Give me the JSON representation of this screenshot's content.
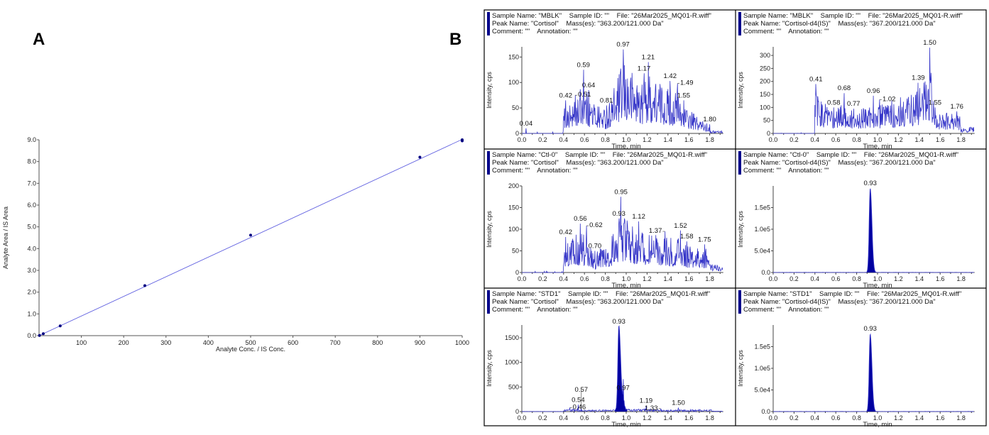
{
  "panel_labels": {
    "a": "A",
    "b": "B"
  },
  "chart_data": [
    {
      "type": "scatter",
      "panel": "A",
      "xlabel": "Analyte Conc. / IS Conc.",
      "ylabel": "Analyte Area / IS Area",
      "xlim": [
        0,
        1000
      ],
      "ylim": [
        0,
        9.0
      ],
      "xticks": [
        "100",
        "200",
        "300",
        "400",
        "500",
        "600",
        "700",
        "800",
        "900",
        "1000"
      ],
      "yticks": [
        "0.0",
        "1.0",
        "2.0",
        "3.0",
        "4.0",
        "5.0",
        "6.0",
        "7.0",
        "8.0",
        "9.0"
      ],
      "points": [
        {
          "x": 1,
          "y": 0.01
        },
        {
          "x": 10,
          "y": 0.09
        },
        {
          "x": 50,
          "y": 0.45
        },
        {
          "x": 250,
          "y": 2.3
        },
        {
          "x": 500,
          "y": 4.62
        },
        {
          "x": 900,
          "y": 8.2
        },
        {
          "x": 1000,
          "y": 9.0
        },
        {
          "x": 1000,
          "y": 8.95
        }
      ],
      "fit_line": {
        "x": [
          0,
          1000
        ],
        "y": [
          0.0,
          9.02
        ]
      },
      "point_color": "#000080",
      "line_color": "#6060e0",
      "grid": false
    },
    {
      "type": "line",
      "panel": "B",
      "header": [
        "Sample Name: \"MBLK\"    Sample ID: \"\"    File: \"26Mar2025_MQ01-R.wiff\"",
        "Peak Name: \"Cortisol\"    Mass(es): \"363.200/121.000 Da\"",
        "Comment: \"\"    Annotation: \"\""
      ],
      "xlabel": "Time, min",
      "ylabel": "Intensity, cps",
      "xlim": [
        0,
        1.93
      ],
      "ylim": [
        0,
        170
      ],
      "xticks": [
        "0.0",
        "0.2",
        "0.4",
        "0.6",
        "0.8",
        "1.0",
        "1.2",
        "1.4",
        "1.6",
        "1.8"
      ],
      "yticks": [
        {
          "v": 0,
          "label": "0"
        },
        {
          "v": 50,
          "label": "50"
        },
        {
          "v": 100,
          "label": "100"
        },
        {
          "v": 150,
          "label": "150"
        }
      ],
      "signal_start": 0.4,
      "peaks": [
        {
          "t": 0.04,
          "y": 10,
          "label": "0.04"
        },
        {
          "t": 0.42,
          "y": 65,
          "label": "0.42"
        },
        {
          "t": 0.51,
          "y": 75,
          "label": "0.51"
        },
        {
          "t": 0.59,
          "y": 125,
          "label": "0.59"
        },
        {
          "t": 0.64,
          "y": 85,
          "label": "0.64"
        },
        {
          "t": 0.81,
          "y": 55,
          "label": "0.81"
        },
        {
          "t": 0.97,
          "y": 165,
          "label": "0.97"
        },
        {
          "t": 1.17,
          "y": 118,
          "label": "1.17"
        },
        {
          "t": 1.21,
          "y": 140,
          "label": "1.21"
        },
        {
          "t": 1.42,
          "y": 103,
          "label": "1.42"
        },
        {
          "t": 1.49,
          "y": 98,
          "label": "1.49"
        },
        {
          "t": 1.55,
          "y": 65,
          "label": "1.55"
        },
        {
          "t": 1.8,
          "y": 18,
          "label": "1.80"
        }
      ]
    },
    {
      "type": "line",
      "panel": "B",
      "header": [
        "Sample Name: \"MBLK\"    Sample ID: \"\"    File: \"26Mar2025_MQ01-R.wiff\"",
        "Peak Name: \"Cortisol-d4(IS)\"    Mass(es): \"367.200/121.000 Da\"",
        "Comment: \"\"    Annotation: \"\""
      ],
      "xlabel": "Time, min",
      "ylabel": "Intensity, cps",
      "xlim": [
        0,
        1.93
      ],
      "ylim": [
        0,
        333
      ],
      "xticks": [
        "0.0",
        "0.2",
        "0.4",
        "0.6",
        "0.8",
        "1.0",
        "1.2",
        "1.4",
        "1.6",
        "1.8"
      ],
      "yticks": [
        {
          "v": 0,
          "label": "0"
        },
        {
          "v": 50,
          "label": "50"
        },
        {
          "v": 100,
          "label": "100"
        },
        {
          "v": 150,
          "label": "150"
        },
        {
          "v": 200,
          "label": "200"
        },
        {
          "v": 250,
          "label": "250"
        },
        {
          "v": 300,
          "label": "300"
        }
      ],
      "signal_start": 0.4,
      "peaks": [
        {
          "t": 0.41,
          "y": 190,
          "label": "0.41"
        },
        {
          "t": 0.58,
          "y": 100,
          "label": "0.58"
        },
        {
          "t": 0.68,
          "y": 155,
          "label": "0.68"
        },
        {
          "t": 0.77,
          "y": 95,
          "label": "0.77"
        },
        {
          "t": 0.96,
          "y": 145,
          "label": "0.96"
        },
        {
          "t": 1.02,
          "y": 130,
          "label": "1.02"
        },
        {
          "t": 1.39,
          "y": 195,
          "label": "1.39"
        },
        {
          "t": 1.5,
          "y": 330,
          "label": "1.50"
        },
        {
          "t": 1.55,
          "y": 100,
          "label": "1.55"
        },
        {
          "t": 1.76,
          "y": 85,
          "label": "1.76"
        }
      ]
    },
    {
      "type": "line",
      "panel": "B",
      "header": [
        "Sample Name: \"Ctl-0\"    Sample ID: \"\"    File: \"26Mar2025_MQ01-R.wiff\"",
        "Peak Name: \"Cortisol\"    Mass(es): \"363.200/121.000 Da\"",
        "Comment: \"\"    Annotation: \"\""
      ],
      "xlabel": "Time, min",
      "ylabel": "Intensity, cps",
      "xlim": [
        0,
        1.93
      ],
      "ylim": [
        0,
        200
      ],
      "xticks": [
        "0.0",
        "0.2",
        "0.4",
        "0.6",
        "0.8",
        "1.0",
        "1.2",
        "1.4",
        "1.6",
        "1.8"
      ],
      "yticks": [
        {
          "v": 0,
          "label": "0"
        },
        {
          "v": 50,
          "label": "50"
        },
        {
          "v": 100,
          "label": "100"
        },
        {
          "v": 150,
          "label": "150"
        },
        {
          "v": 200,
          "label": "200"
        }
      ],
      "signal_start": 0.4,
      "peaks": [
        {
          "t": 0.42,
          "y": 82,
          "label": "0.42"
        },
        {
          "t": 0.56,
          "y": 113,
          "label": "0.56"
        },
        {
          "t": 0.62,
          "y": 108,
          "label": "0.62"
        },
        {
          "t": 0.7,
          "y": 50,
          "label": "0.70"
        },
        {
          "t": 0.93,
          "y": 125,
          "label": "0.93"
        },
        {
          "t": 0.95,
          "y": 175,
          "label": "0.95"
        },
        {
          "t": 1.12,
          "y": 118,
          "label": "1.12"
        },
        {
          "t": 1.37,
          "y": 95,
          "label": "1.37"
        },
        {
          "t": 1.52,
          "y": 97,
          "label": "1.52"
        },
        {
          "t": 1.58,
          "y": 72,
          "label": "1.58"
        },
        {
          "t": 1.75,
          "y": 65,
          "label": "1.75"
        }
      ]
    },
    {
      "type": "line",
      "panel": "B",
      "header": [
        "Sample Name: \"Ctl-0\"    Sample ID: \"\"    File: \"26Mar2025_MQ01-R.wiff\"",
        "Peak Name: \"Cortisol-d4(IS)\"    Mass(es): \"367.200/121.000 Da\"",
        "Comment: \"\"    Annotation: \"\""
      ],
      "xlabel": "Time, min",
      "ylabel": "Intensity, cps",
      "xlim": [
        0,
        1.93
      ],
      "ylim": [
        0,
        200000
      ],
      "xticks": [
        "0.0",
        "0.2",
        "0.4",
        "0.6",
        "0.8",
        "1.0",
        "1.2",
        "1.4",
        "1.6",
        "1.8"
      ],
      "yticks": [
        {
          "v": 0,
          "label": "0.0"
        },
        {
          "v": 50000,
          "label": "5.0e4"
        },
        {
          "v": 100000,
          "label": "1.0e5"
        },
        {
          "v": 150000,
          "label": "1.5e5"
        }
      ],
      "signal_start": 0.4,
      "main_peak": {
        "t": 0.93,
        "y": 195000,
        "label": "0.93",
        "filled": true
      },
      "peaks": []
    },
    {
      "type": "line",
      "panel": "B",
      "header": [
        "Sample Name: \"STD1\"    Sample ID: \"\"    File: \"26Mar2025_MQ01-R.wiff\"",
        "Peak Name: \"Cortisol\"    Mass(es): \"363.200/121.000 Da\"",
        "Comment: \"\"    Annotation: \"\""
      ],
      "xlabel": "Time, min",
      "ylabel": "Intensity, cps",
      "xlim": [
        0,
        1.93
      ],
      "ylim": [
        0,
        1760
      ],
      "xticks": [
        "0.0",
        "0.2",
        "0.4",
        "0.6",
        "0.8",
        "1.0",
        "1.2",
        "1.4",
        "1.6",
        "1.8"
      ],
      "yticks": [
        {
          "v": 0,
          "label": "0"
        },
        {
          "v": 500,
          "label": "500"
        },
        {
          "v": 1000,
          "label": "1000"
        },
        {
          "v": 1500,
          "label": "1500"
        }
      ],
      "signal_start": 0.4,
      "main_peak": {
        "t": 0.93,
        "y": 1730,
        "label": "0.93",
        "filled": true
      },
      "peaks": [
        {
          "t": 0.46,
          "y": 80,
          "label": "0.46"
        },
        {
          "t": 0.54,
          "y": 140,
          "label": "0.54"
        },
        {
          "t": 0.57,
          "y": 60,
          "label": "0.57"
        },
        {
          "t": 0.97,
          "y": 380,
          "label": "0.97"
        },
        {
          "t": 1.19,
          "y": 120,
          "label": "1.19"
        },
        {
          "t": 1.33,
          "y": 60,
          "label": "1.33"
        },
        {
          "t": 1.5,
          "y": 80,
          "label": "1.50"
        }
      ]
    },
    {
      "type": "line",
      "panel": "B",
      "header": [
        "Sample Name: \"STD1\"    Sample ID: \"\"    File: \"26Mar2025_MQ01-R.wiff\"",
        "Peak Name: \"Cortisol-d4(IS)\"    Mass(es): \"367.200/121.000 Da\"",
        "Comment: \"\"    Annotation: \"\""
      ],
      "xlabel": "Time, min",
      "ylabel": "Intensity, cps",
      "xlim": [
        0,
        1.93
      ],
      "ylim": [
        0,
        200000
      ],
      "xticks": [
        "0.0",
        "0.2",
        "0.4",
        "0.6",
        "0.8",
        "1.0",
        "1.2",
        "1.4",
        "1.6",
        "1.8"
      ],
      "yticks": [
        {
          "v": 0,
          "label": "0.0"
        },
        {
          "v": 50000,
          "label": "5.0e4"
        },
        {
          "v": 100000,
          "label": "1.0e5"
        },
        {
          "v": 150000,
          "label": "1.5e5"
        }
      ],
      "signal_start": 0.4,
      "main_peak": {
        "t": 0.93,
        "y": 180000,
        "label": "0.93",
        "filled": true
      },
      "peaks": []
    }
  ],
  "colors": {
    "trace": "#3535c8",
    "fill": "#0000a0",
    "header_bar": "#00008b",
    "frame": "#000000"
  }
}
